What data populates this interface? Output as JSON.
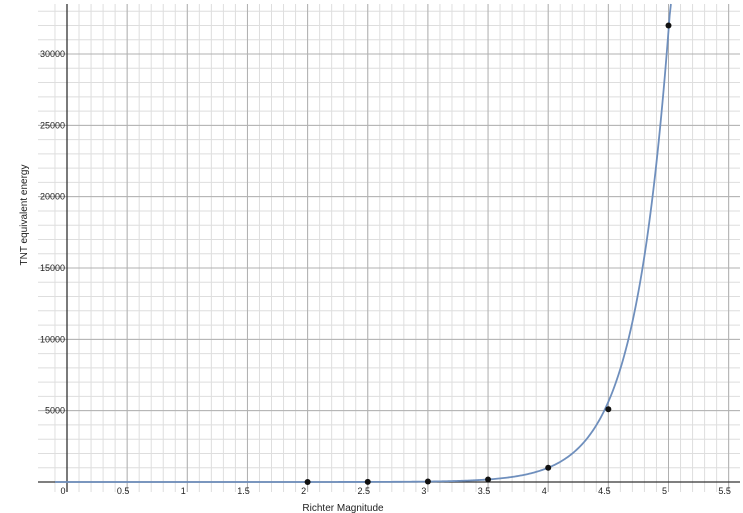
{
  "chart_data": {
    "type": "scatter",
    "title": "",
    "xlabel": "Richter Magnitude",
    "ylabel": "TNT equivalent energy",
    "xlim": [
      -0.1,
      5.6
    ],
    "ylim": [
      -1000,
      33500
    ],
    "grid": true,
    "minor_grid": true,
    "x_ticks": [
      0,
      0.5,
      1,
      1.5,
      2,
      2.5,
      3,
      3.5,
      4,
      4.5,
      5,
      5.5
    ],
    "x_tick_labels": [
      "0",
      "0.5",
      "1",
      "1.5",
      "2",
      "2.5",
      "3",
      "3.5",
      "4",
      "4.5",
      "5",
      "5.5"
    ],
    "y_ticks": [
      5000,
      10000,
      15000,
      20000,
      25000,
      30000
    ],
    "y_tick_labels": [
      "5000",
      "10000",
      "15000",
      "20000",
      "25000",
      "30000"
    ],
    "series": [
      {
        "kind": "points",
        "x": [
          2,
          2.5,
          3,
          3.5,
          4,
          4.5,
          5
        ],
        "y": [
          1,
          5.6,
          32,
          178,
          1000,
          5100,
          32000
        ]
      },
      {
        "kind": "fit-curve",
        "equation": "y = 10^(1.5*(x - 2))",
        "x_range": [
          -0.1,
          5.05
        ]
      }
    ],
    "colors": {
      "points": "#111111",
      "curve": "#6f8fbd",
      "grid_major": "#b0b0b0",
      "grid_minor": "#dedede",
      "axis": "#333333"
    }
  }
}
